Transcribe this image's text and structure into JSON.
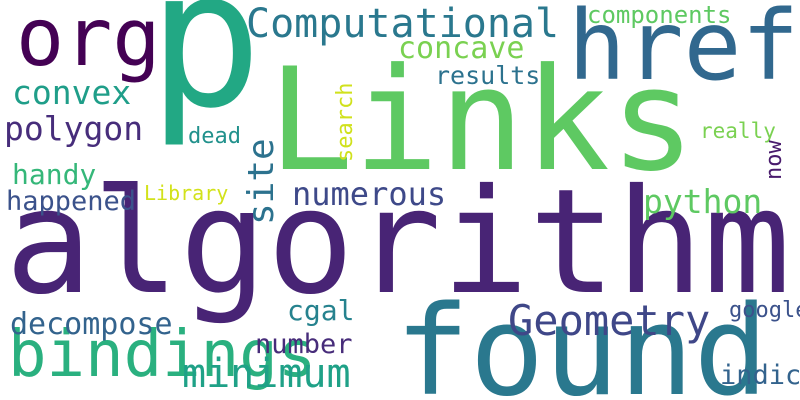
{
  "words": [
    {
      "text": "p",
      "color": "#22a884"
    },
    {
      "text": "Links",
      "color": "#5ec962"
    },
    {
      "text": "algorithm",
      "color": "#482475"
    },
    {
      "text": "found",
      "color": "#2a788e"
    },
    {
      "text": "href",
      "color": "#31688e"
    },
    {
      "text": "org",
      "color": "#440154"
    },
    {
      "text": "Computational",
      "color": "#2a788e"
    },
    {
      "text": "components",
      "color": "#5ec962"
    },
    {
      "text": "concave",
      "color": "#7ad151"
    },
    {
      "text": "results",
      "color": "#2c728e"
    },
    {
      "text": "convex",
      "color": "#1f9e89"
    },
    {
      "text": "polygon",
      "color": "#472d7b"
    },
    {
      "text": "dead",
      "color": "#21918c"
    },
    {
      "text": "really",
      "color": "#7ad151"
    },
    {
      "text": "handy",
      "color": "#35b779"
    },
    {
      "text": "happened",
      "color": "#3b528b"
    },
    {
      "text": "Library",
      "color": "#d2e21b"
    },
    {
      "text": "numerous",
      "color": "#3e4989"
    },
    {
      "text": "python",
      "color": "#5ec962"
    },
    {
      "text": "bindings",
      "color": "#2ab07f"
    },
    {
      "text": "decompose",
      "color": "#33638d"
    },
    {
      "text": "minimum",
      "color": "#1fa187"
    },
    {
      "text": "cgal",
      "color": "#26828e"
    },
    {
      "text": "number",
      "color": "#472c7a"
    },
    {
      "text": "Geometry",
      "color": "#3f4788"
    },
    {
      "text": "google",
      "color": "#3b528b"
    },
    {
      "text": "indicate",
      "color": "#33638d"
    },
    {
      "text": "search",
      "color": "#d0e11c"
    },
    {
      "text": "now",
      "color": "#481a6c"
    },
    {
      "text": "site",
      "color": "#2c728e"
    }
  ]
}
